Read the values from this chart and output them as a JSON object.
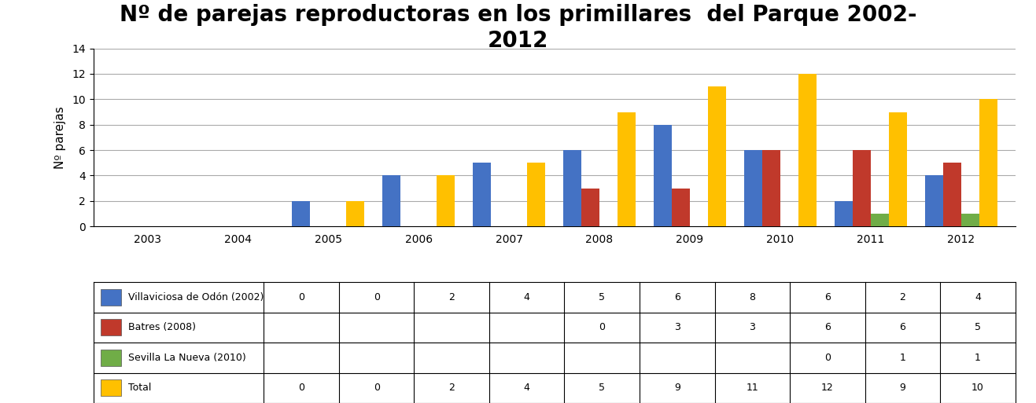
{
  "title": "Nº de parejas reproductoras en los primillares  del Parque 2002-\n2012",
  "ylabel": "Nº parejas",
  "years": [
    2003,
    2004,
    2005,
    2006,
    2007,
    2008,
    2009,
    2010,
    2011,
    2012
  ],
  "series": {
    "Villaviciosa de Odón (2002)": {
      "color": "#4472C4",
      "values": [
        0,
        0,
        2,
        4,
        5,
        6,
        8,
        6,
        2,
        4
      ]
    },
    "Batres (2008)": {
      "color": "#C0392B",
      "values": [
        null,
        null,
        null,
        null,
        0,
        3,
        3,
        6,
        6,
        5
      ]
    },
    "Sevilla La Nueva (2010)": {
      "color": "#70AD47",
      "values": [
        null,
        null,
        null,
        null,
        null,
        null,
        null,
        0,
        1,
        1
      ]
    },
    "Total": {
      "color": "#FFC000",
      "values": [
        0,
        0,
        2,
        4,
        5,
        9,
        11,
        12,
        9,
        10
      ]
    }
  },
  "ylim": [
    0,
    14
  ],
  "yticks": [
    0,
    2,
    4,
    6,
    8,
    10,
    12,
    14
  ],
  "table_rows": [
    [
      "Villaviciosa de Odón (2002)",
      "0",
      "0",
      "2",
      "4",
      "5",
      "6",
      "8",
      "6",
      "2",
      "4"
    ],
    [
      "Batres (2008)",
      "",
      "",
      "",
      "",
      "0",
      "3",
      "3",
      "6",
      "6",
      "5"
    ],
    [
      "Sevilla La Nueva (2010)",
      "",
      "",
      "",
      "",
      "",
      "",
      "",
      "0",
      "1",
      "1"
    ],
    [
      "Total",
      "0",
      "0",
      "2",
      "4",
      "5",
      "9",
      "11",
      "12",
      "9",
      "10"
    ]
  ],
  "table_row_colors": [
    "#4472C4",
    "#C0392B",
    "#70AD47",
    "#FFC000"
  ],
  "background_color": "#FFFFFF",
  "bar_width": 0.2,
  "title_fontsize": 20,
  "axis_fontsize": 11
}
